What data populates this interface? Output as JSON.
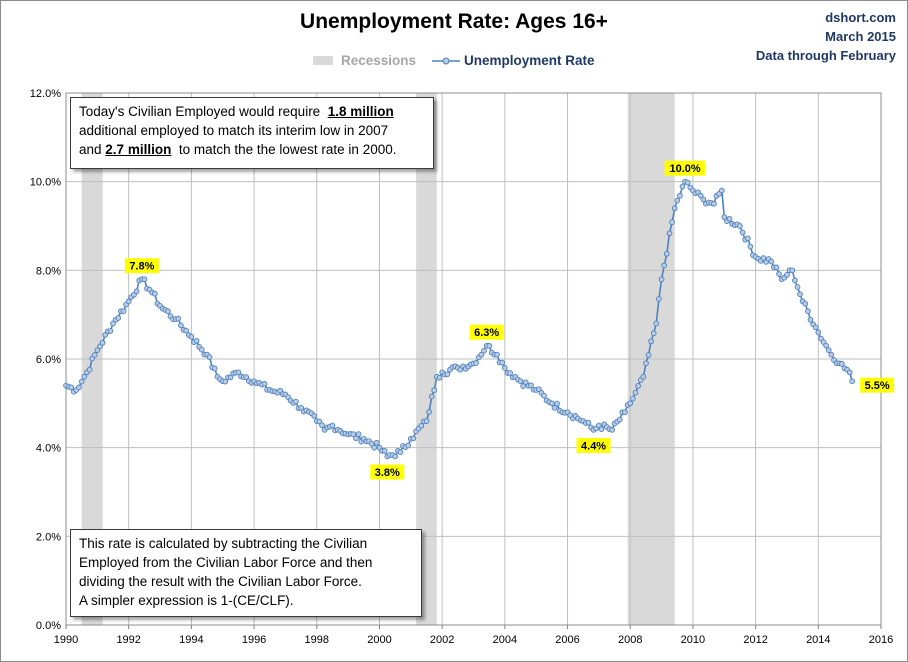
{
  "source": {
    "site": "dshort.com",
    "date": "March 2015",
    "note": "Data through February"
  },
  "legend": {
    "recessions": "Recessions",
    "series": "Unemployment Rate"
  },
  "annotations": {
    "box1": {
      "line1_pre": "Today's Civilian Employed would require",
      "line1_bold": "1.8 million",
      "line2": "additional employed to match its interim low in 2007",
      "line3_pre": "and",
      "line3_bold": "2.7 million",
      "line3_post": "to match the the lowest rate in 2000."
    },
    "box2": {
      "line1": "This rate is calculated by subtracting the Civilian",
      "line2": "Employed from  the Civilian Labor Force and then",
      "line3": "dividing the result with the Civilian Labor Force.",
      "line4": "A simpler expression is 1-(CE/CLF)."
    }
  },
  "colors": {
    "line": "#4f81bd",
    "marker_fill": "#b8cce4",
    "recession": "#d9d9d9",
    "label_bg": "#ffff00",
    "source_text": "#1f3864"
  },
  "chart_data": {
    "type": "line",
    "title": "Unemployment Rate: Ages 16+",
    "xlim": [
      1990,
      2016
    ],
    "ylim": [
      0,
      12
    ],
    "x_ticks": [
      "1990",
      "1992",
      "1994",
      "1996",
      "1998",
      "2000",
      "2002",
      "2004",
      "2006",
      "2008",
      "2010",
      "2012",
      "2014",
      "2016"
    ],
    "y_ticks": [
      "0.0%",
      "2.0%",
      "4.0%",
      "6.0%",
      "8.0%",
      "10.0%",
      "12.0%"
    ],
    "grid": true,
    "legend_position": "top-center",
    "recessions": [
      {
        "start": 1990.5,
        "end": 1991.17
      },
      {
        "start": 2001.17,
        "end": 2001.83
      },
      {
        "start": 2007.92,
        "end": 2009.42
      }
    ],
    "data_labels": [
      {
        "x": 1992.42,
        "y": 7.8,
        "text": "7.8%",
        "pos": "above"
      },
      {
        "x": 2000.25,
        "y": 3.8,
        "text": "3.8%",
        "pos": "below"
      },
      {
        "x": 2003.42,
        "y": 6.3,
        "text": "6.3%",
        "pos": "above"
      },
      {
        "x": 2006.83,
        "y": 4.4,
        "text": "4.4%",
        "pos": "below"
      },
      {
        "x": 2009.75,
        "y": 10.0,
        "text": "10.0%",
        "pos": "above"
      },
      {
        "x": 2015.08,
        "y": 5.5,
        "text": "5.5%",
        "pos": "right"
      }
    ],
    "series": [
      {
        "name": "Unemployment Rate",
        "keypoints": [
          [
            1990.0,
            5.4
          ],
          [
            1990.33,
            5.3
          ],
          [
            1990.67,
            5.7
          ],
          [
            1991.0,
            6.2
          ],
          [
            1991.5,
            6.8
          ],
          [
            1992.0,
            7.3
          ],
          [
            1992.42,
            7.8
          ],
          [
            1992.75,
            7.5
          ],
          [
            1993.0,
            7.2
          ],
          [
            1993.5,
            6.9
          ],
          [
            1994.0,
            6.5
          ],
          [
            1994.5,
            6.1
          ],
          [
            1994.83,
            5.6
          ],
          [
            1995.0,
            5.5
          ],
          [
            1995.5,
            5.7
          ],
          [
            1996.0,
            5.5
          ],
          [
            1996.5,
            5.3
          ],
          [
            1997.0,
            5.2
          ],
          [
            1997.5,
            4.9
          ],
          [
            1998.0,
            4.6
          ],
          [
            1998.25,
            4.4
          ],
          [
            1998.5,
            4.5
          ],
          [
            1999.0,
            4.3
          ],
          [
            1999.5,
            4.2
          ],
          [
            2000.0,
            4.0
          ],
          [
            2000.25,
            3.8
          ],
          [
            2000.67,
            3.9
          ],
          [
            2001.0,
            4.2
          ],
          [
            2001.5,
            4.6
          ],
          [
            2001.83,
            5.6
          ],
          [
            2002.0,
            5.7
          ],
          [
            2002.5,
            5.8
          ],
          [
            2003.0,
            5.9
          ],
          [
            2003.42,
            6.3
          ],
          [
            2003.75,
            6.1
          ],
          [
            2004.0,
            5.8
          ],
          [
            2004.5,
            5.5
          ],
          [
            2005.0,
            5.3
          ],
          [
            2005.5,
            5.0
          ],
          [
            2006.0,
            4.8
          ],
          [
            2006.5,
            4.6
          ],
          [
            2006.83,
            4.4
          ],
          [
            2007.0,
            4.5
          ],
          [
            2007.42,
            4.4
          ],
          [
            2007.83,
            4.8
          ],
          [
            2008.0,
            5.0
          ],
          [
            2008.42,
            5.6
          ],
          [
            2008.83,
            6.8
          ],
          [
            2009.0,
            7.8
          ],
          [
            2009.42,
            9.4
          ],
          [
            2009.75,
            10.0
          ],
          [
            2010.0,
            9.8
          ],
          [
            2010.33,
            9.6
          ],
          [
            2010.67,
            9.5
          ],
          [
            2010.92,
            9.8
          ],
          [
            2011.0,
            9.2
          ],
          [
            2011.5,
            9.0
          ],
          [
            2012.0,
            8.3
          ],
          [
            2012.5,
            8.2
          ],
          [
            2012.83,
            7.8
          ],
          [
            2013.0,
            7.9
          ],
          [
            2013.17,
            8.0
          ],
          [
            2013.5,
            7.3
          ],
          [
            2014.0,
            6.6
          ],
          [
            2014.33,
            6.2
          ],
          [
            2014.67,
            5.9
          ],
          [
            2015.0,
            5.7
          ],
          [
            2015.08,
            5.5
          ]
        ]
      }
    ]
  }
}
